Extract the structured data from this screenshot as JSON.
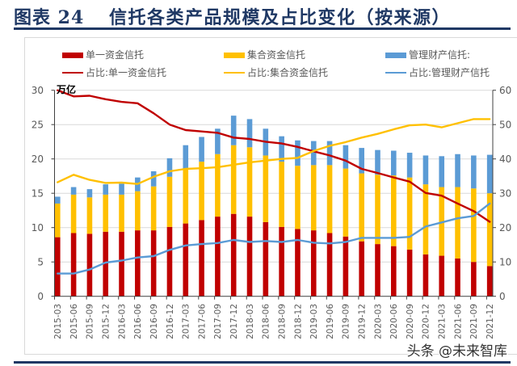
{
  "header": {
    "figure_label": "图表 24",
    "title": "信托各类产品规模及占比变化（按来源）"
  },
  "watermark": "头条 @未来智库",
  "chart_data": {
    "type": "bar",
    "subtype": "stacked-bar-with-lines",
    "title": "信托各类产品规模及占比变化（按来源）",
    "xlabel": "",
    "ylabel": "万亿",
    "y2label": "%",
    "legend_position": "top",
    "grid": true,
    "categories": [
      "2015-03",
      "2015-06",
      "2015-09",
      "2015-12",
      "2016-03",
      "2016-06",
      "2016-09",
      "2016-12",
      "2017-03",
      "2017-06",
      "2017-09",
      "2017-12",
      "2018-03",
      "2018-06",
      "2018-09",
      "2018-12",
      "2019-03",
      "2019-06",
      "2019-09",
      "2019-12",
      "2020-03",
      "2020-06",
      "2020-09",
      "2020-12",
      "2021-03",
      "2021-06",
      "2021-09",
      "2021-12"
    ],
    "left_axis": {
      "unit_label": "万亿",
      "range": [
        0,
        30
      ],
      "ticks": [
        0,
        5,
        10,
        15,
        20,
        25,
        30
      ]
    },
    "right_axis": {
      "range": [
        0,
        60
      ],
      "ticks": [
        0,
        10,
        20,
        30,
        40,
        50,
        60
      ]
    },
    "series": [
      {
        "name": "单一资金信托",
        "kind": "bar",
        "axis": "left",
        "color": "#C00000",
        "values": [
          8.6,
          9.2,
          9.1,
          9.4,
          9.4,
          9.6,
          9.6,
          10.1,
          10.6,
          11.1,
          11.6,
          12.0,
          11.6,
          10.8,
          10.1,
          9.8,
          9.6,
          9.2,
          8.7,
          8.0,
          7.6,
          7.3,
          6.8,
          6.1,
          5.9,
          5.5,
          5.0,
          4.4
        ]
      },
      {
        "name": "集合资金信托",
        "kind": "bar",
        "axis": "left",
        "color": "#FFC000",
        "values": [
          4.9,
          5.6,
          5.3,
          5.4,
          5.4,
          5.7,
          6.4,
          7.3,
          8.0,
          8.5,
          9.1,
          10.0,
          10.1,
          9.7,
          9.5,
          9.2,
          9.5,
          9.9,
          9.9,
          9.9,
          10.1,
          10.3,
          10.5,
          10.2,
          10.0,
          10.4,
          10.7,
          10.6
        ]
      },
      {
        "name": "管理财产信托:",
        "kind": "bar",
        "axis": "left",
        "color": "#5B9BD5",
        "values": [
          1.0,
          1.1,
          1.2,
          1.5,
          1.6,
          2.0,
          2.2,
          2.7,
          3.4,
          3.6,
          3.7,
          4.3,
          4.1,
          3.9,
          3.7,
          3.7,
          3.5,
          3.5,
          3.4,
          3.7,
          3.6,
          3.6,
          3.6,
          4.2,
          4.5,
          4.8,
          4.8,
          5.6
        ]
      },
      {
        "name": "占比:单一资金信托",
        "kind": "line",
        "axis": "right",
        "color": "#C00000",
        "values": [
          60.0,
          58.2,
          58.4,
          57.4,
          56.6,
          56.2,
          53.3,
          50.0,
          48.4,
          48.0,
          47.6,
          46.2,
          45.8,
          45.0,
          44.5,
          43.5,
          42.2,
          41.0,
          39.5,
          37.1,
          35.9,
          34.6,
          33.4,
          30.1,
          29.3,
          27.0,
          24.8,
          21.7
        ]
      },
      {
        "name": "占比:集合资金信托",
        "kind": "line",
        "axis": "right",
        "color": "#FFC000",
        "values": [
          33.2,
          35.4,
          33.9,
          33.0,
          33.1,
          32.7,
          34.8,
          36.4,
          37.1,
          37.3,
          37.6,
          38.3,
          39.0,
          39.5,
          40.0,
          40.3,
          42.3,
          43.8,
          44.9,
          46.2,
          47.3,
          48.6,
          49.8,
          50.0,
          49.2,
          50.4,
          51.6,
          51.6
        ]
      },
      {
        "name": "占比:管理财产信托",
        "kind": "line",
        "axis": "right",
        "color": "#5B9BD5",
        "values": [
          6.6,
          6.6,
          7.8,
          9.8,
          10.4,
          11.3,
          11.7,
          13.5,
          14.8,
          15.2,
          15.5,
          16.4,
          15.8,
          16.1,
          15.8,
          16.4,
          15.6,
          15.4,
          15.8,
          17.0,
          17.0,
          17.0,
          17.3,
          20.3,
          21.5,
          22.7,
          23.4,
          27.0
        ]
      }
    ]
  }
}
